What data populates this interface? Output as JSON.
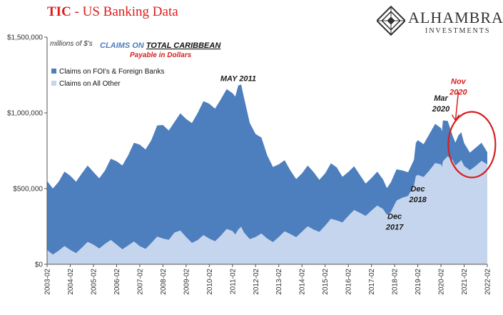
{
  "header": {
    "title_prefix": "TIC",
    "title_rest": " - US Banking Data"
  },
  "logo": {
    "brand": "ALHAMBRA",
    "sub": "INVESTMENTS"
  },
  "chart_data": {
    "type": "area",
    "unit_label": "millions of $'s",
    "title_line1_prefix": "CLAIMS ON",
    "title_line1_main": "TOTAL CARIBBEAN",
    "title_line2": "Payable in Dollars",
    "legend_position": "top-left",
    "ylim": [
      0,
      1500000
    ],
    "y_ticks": [
      0,
      500000,
      1000000,
      1500000
    ],
    "y_tick_labels": [
      "$0",
      "$500,000",
      "$1,000,000",
      "$1,500,000"
    ],
    "x_ticks": [
      "2003-02",
      "2004-02",
      "2005-02",
      "2006-02",
      "2007-02",
      "2008-02",
      "2009-02",
      "2010-02",
      "2011-02",
      "2012-02",
      "2013-02",
      "2014-02",
      "2015-02",
      "2016-02",
      "2017-02",
      "2018-02",
      "2019-02",
      "2020-02",
      "2021-02",
      "2022-02"
    ],
    "grid": false,
    "colors": {
      "total": "#4d7ebd",
      "other": "#c5d5ee",
      "annotation_red": "#d61f1f",
      "text": "#1a1a1a"
    },
    "series": [
      {
        "name": "Claims on FOI's & Foreign Banks",
        "color": "#4d7ebd",
        "note": "stacked top = total claims",
        "points": [
          [
            "2003-02",
            550000
          ],
          [
            "2003-08",
            545000
          ],
          [
            "2004-02",
            585000
          ],
          [
            "2004-08",
            600000
          ],
          [
            "2005-02",
            610000
          ],
          [
            "2005-08",
            620000
          ],
          [
            "2006-02",
            680000
          ],
          [
            "2006-08",
            720000
          ],
          [
            "2007-02",
            790000
          ],
          [
            "2007-08",
            820000
          ],
          [
            "2008-02",
            920000
          ],
          [
            "2008-08",
            940000
          ],
          [
            "2009-02",
            960000
          ],
          [
            "2009-08",
            1000000
          ],
          [
            "2010-02",
            1060000
          ],
          [
            "2010-08",
            1090000
          ],
          [
            "2011-02",
            1130000
          ],
          [
            "2011-05",
            1180000
          ],
          [
            "2011-08",
            1100000
          ],
          [
            "2012-02",
            860000
          ],
          [
            "2012-08",
            720000
          ],
          [
            "2013-02",
            660000
          ],
          [
            "2013-08",
            620000
          ],
          [
            "2014-02",
            600000
          ],
          [
            "2014-08",
            610000
          ],
          [
            "2015-02",
            600000
          ],
          [
            "2015-08",
            640000
          ],
          [
            "2016-02",
            610000
          ],
          [
            "2016-08",
            590000
          ],
          [
            "2017-02",
            570000
          ],
          [
            "2017-08",
            560000
          ],
          [
            "2017-12",
            540000
          ],
          [
            "2018-06",
            620000
          ],
          [
            "2018-12",
            690000
          ],
          [
            "2019-02",
            820000
          ],
          [
            "2019-08",
            860000
          ],
          [
            "2020-02",
            900000
          ],
          [
            "2020-03",
            950000
          ],
          [
            "2020-08",
            850000
          ],
          [
            "2020-11",
            850000
          ],
          [
            "2021-02",
            800000
          ],
          [
            "2021-08",
            770000
          ],
          [
            "2022-02",
            740000
          ]
        ]
      },
      {
        "name": "Claims on All Other",
        "color": "#c5d5ee",
        "points": [
          [
            "2003-02",
            95000
          ],
          [
            "2003-08",
            90000
          ],
          [
            "2004-02",
            95000
          ],
          [
            "2004-08",
            110000
          ],
          [
            "2005-02",
            130000
          ],
          [
            "2005-08",
            135000
          ],
          [
            "2006-02",
            130000
          ],
          [
            "2006-08",
            125000
          ],
          [
            "2007-02",
            120000
          ],
          [
            "2007-08",
            140000
          ],
          [
            "2008-02",
            170000
          ],
          [
            "2008-08",
            210000
          ],
          [
            "2009-02",
            180000
          ],
          [
            "2009-08",
            160000
          ],
          [
            "2010-02",
            170000
          ],
          [
            "2010-08",
            190000
          ],
          [
            "2011-02",
            220000
          ],
          [
            "2011-05",
            230000
          ],
          [
            "2011-08",
            210000
          ],
          [
            "2012-02",
            180000
          ],
          [
            "2012-08",
            170000
          ],
          [
            "2013-02",
            180000
          ],
          [
            "2013-08",
            200000
          ],
          [
            "2014-02",
            215000
          ],
          [
            "2014-08",
            230000
          ],
          [
            "2015-02",
            255000
          ],
          [
            "2015-08",
            290000
          ],
          [
            "2016-02",
            320000
          ],
          [
            "2016-08",
            340000
          ],
          [
            "2017-02",
            355000
          ],
          [
            "2017-08",
            365000
          ],
          [
            "2017-12",
            345000
          ],
          [
            "2018-06",
            440000
          ],
          [
            "2018-12",
            520000
          ],
          [
            "2019-02",
            590000
          ],
          [
            "2019-08",
            620000
          ],
          [
            "2020-02",
            660000
          ],
          [
            "2020-03",
            680000
          ],
          [
            "2020-08",
            690000
          ],
          [
            "2020-11",
            670000
          ],
          [
            "2021-02",
            650000
          ],
          [
            "2021-08",
            650000
          ],
          [
            "2022-02",
            660000
          ]
        ]
      }
    ],
    "annotations": [
      {
        "id": "may2011",
        "text": "MAY 2011",
        "x": "2011-05",
        "y": 1210000,
        "color": "#1a1a1a"
      },
      {
        "id": "mar2020",
        "lines": [
          "Mar",
          "2020"
        ],
        "x": "2020-02",
        "y": 1080000,
        "color": "#1a1a1a"
      },
      {
        "id": "nov2020",
        "lines": [
          "Nov",
          "2020"
        ],
        "x": "2020-11",
        "y": 1190000,
        "color": "#d61f1f"
      },
      {
        "id": "dec2018",
        "lines": [
          "Dec",
          "2018"
        ],
        "x": "2019-02",
        "y": 480000,
        "color": "#1a1a1a"
      },
      {
        "id": "dec2017",
        "lines": [
          "Dec",
          "2017"
        ],
        "x": "2018-02",
        "y": 300000,
        "color": "#1a1a1a"
      }
    ]
  }
}
